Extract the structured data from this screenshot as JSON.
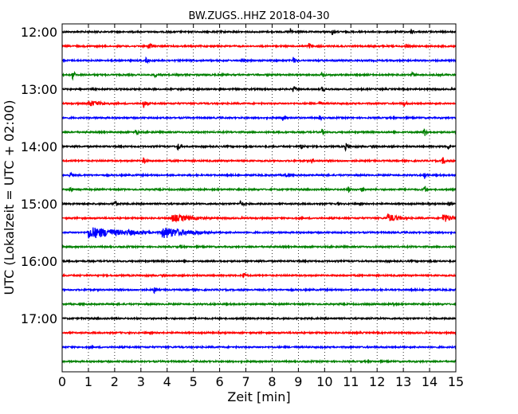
{
  "chart_data": {
    "type": "line",
    "title": "BW.ZUGS..HHZ 2018-04-30",
    "xlabel": "Zeit  [min]",
    "ylabel": "UTC (Lokalzeit = UTC + 02:00)",
    "xlim": [
      0,
      15
    ],
    "x_ticks": [
      "0",
      "1",
      "2",
      "3",
      "4",
      "5",
      "6",
      "7",
      "8",
      "9",
      "10",
      "11",
      "12",
      "13",
      "14",
      "15"
    ],
    "x_grid": "dotted vertical gridlines at every minute",
    "y_ticks": [
      "12:00",
      "13:00",
      "14:00",
      "15:00",
      "16:00",
      "17:00"
    ],
    "row_interval_minutes": 15,
    "colors": [
      "#000000",
      "#ff0000",
      "#0000ff",
      "#008000"
    ],
    "rows": [
      {
        "start": "12:00",
        "color": "#000000",
        "events": [
          {
            "t": 8.7,
            "a": 5
          },
          {
            "t": 10.3,
            "a": 5
          },
          {
            "t": 13.3,
            "a": 4
          }
        ]
      },
      {
        "start": "12:15",
        "color": "#ff0000",
        "events": [
          {
            "t": 3.3,
            "a": 6
          },
          {
            "t": 9.4,
            "a": 5
          },
          {
            "t": 13.1,
            "a": 4
          }
        ]
      },
      {
        "start": "12:30",
        "color": "#0000ff",
        "events": [
          {
            "t": 3.2,
            "a": 4
          },
          {
            "t": 8.8,
            "a": 5
          }
        ]
      },
      {
        "start": "12:45",
        "color": "#008000",
        "events": [
          {
            "t": 0.4,
            "a": 6
          },
          {
            "t": 3.5,
            "a": 4
          },
          {
            "t": 9.9,
            "a": 5
          },
          {
            "t": 13.3,
            "a": 6
          }
        ]
      },
      {
        "start": "13:00",
        "color": "#000000",
        "events": [
          {
            "t": 8.8,
            "a": 5
          },
          {
            "t": 9.9,
            "a": 4
          }
        ]
      },
      {
        "start": "13:15",
        "color": "#ff0000",
        "events": [
          {
            "t": 1.0,
            "a": 4,
            "d": 0.8
          },
          {
            "t": 3.1,
            "a": 6
          },
          {
            "t": 9.8,
            "a": 4
          },
          {
            "t": 13.0,
            "a": 5
          }
        ]
      },
      {
        "start": "13:30",
        "color": "#0000ff",
        "events": [
          {
            "t": 8.4,
            "a": 5
          },
          {
            "t": 9.8,
            "a": 4
          }
        ]
      },
      {
        "start": "13:45",
        "color": "#008000",
        "events": [
          {
            "t": 2.8,
            "a": 5
          },
          {
            "t": 9.9,
            "a": 4
          },
          {
            "t": 13.8,
            "a": 6
          }
        ]
      },
      {
        "start": "14:00",
        "color": "#000000",
        "events": [
          {
            "t": 4.4,
            "a": 5
          },
          {
            "t": 9.1,
            "a": 5
          },
          {
            "t": 10.8,
            "a": 5
          },
          {
            "t": 14.7,
            "a": 4
          }
        ]
      },
      {
        "start": "14:15",
        "color": "#ff0000",
        "events": [
          {
            "t": 3.1,
            "a": 5
          },
          {
            "t": 9.5,
            "a": 4
          },
          {
            "t": 14.5,
            "a": 5
          }
        ]
      },
      {
        "start": "14:30",
        "color": "#0000ff",
        "events": [
          {
            "t": 0.3,
            "a": 4
          },
          {
            "t": 8.5,
            "a": 4
          },
          {
            "t": 13.8,
            "a": 5
          }
        ]
      },
      {
        "start": "14:45",
        "color": "#008000",
        "events": [
          {
            "t": 0.3,
            "a": 4
          },
          {
            "t": 10.9,
            "a": 4
          },
          {
            "t": 11.4,
            "a": 4
          },
          {
            "t": 13.8,
            "a": 6
          }
        ]
      },
      {
        "start": "15:00",
        "color": "#000000",
        "events": [
          {
            "t": 2.0,
            "a": 5
          },
          {
            "t": 6.8,
            "a": 5
          },
          {
            "t": 10.5,
            "a": 3
          },
          {
            "t": 14.7,
            "a": 4
          }
        ]
      },
      {
        "start": "15:15",
        "color": "#ff0000",
        "events": [
          {
            "t": 4.2,
            "a": 5,
            "d": 1.0
          },
          {
            "t": 12.4,
            "a": 6,
            "d": 0.5
          },
          {
            "t": 14.5,
            "a": 6,
            "d": 0.5
          }
        ]
      },
      {
        "start": "15:30",
        "color": "#0000ff",
        "events": [
          {
            "t": 1.0,
            "a": 8,
            "d": 1.4
          },
          {
            "t": 2.5,
            "a": 4,
            "d": 0.7
          },
          {
            "t": 3.8,
            "a": 8,
            "d": 1.0
          }
        ]
      },
      {
        "start": "15:45",
        "color": "#008000",
        "events": [
          {
            "t": 4.5,
            "a": 3
          }
        ]
      },
      {
        "start": "16:00",
        "color": "#000000",
        "events": []
      },
      {
        "start": "16:15",
        "color": "#ff0000",
        "events": [
          {
            "t": 6.9,
            "a": 5
          }
        ]
      },
      {
        "start": "16:30",
        "color": "#0000ff",
        "events": [
          {
            "t": 3.5,
            "a": 5
          }
        ]
      },
      {
        "start": "16:45",
        "color": "#008000",
        "events": [
          {
            "t": 12.6,
            "a": 3
          }
        ]
      },
      {
        "start": "17:00",
        "color": "#000000",
        "events": []
      },
      {
        "start": "17:15",
        "color": "#ff0000",
        "events": []
      },
      {
        "start": "17:30",
        "color": "#0000ff",
        "events": []
      },
      {
        "start": "17:45",
        "color": "#008000",
        "events": []
      }
    ]
  }
}
